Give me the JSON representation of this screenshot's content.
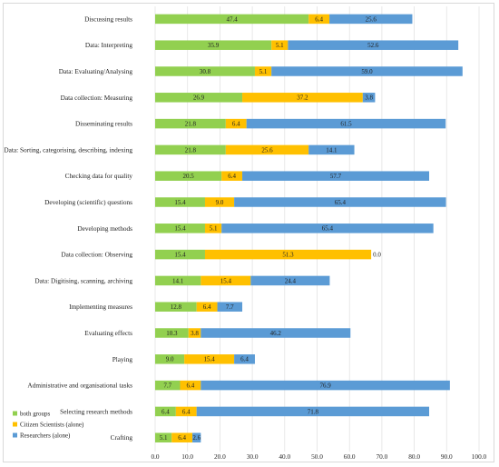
{
  "chart_data": {
    "type": "bar",
    "orientation": "horizontal",
    "stacked": true,
    "title": "",
    "xlabel": "",
    "ylabel": "",
    "xlim": [
      0,
      100
    ],
    "xticks": [
      "0.0",
      "10.0",
      "20.0",
      "30.0",
      "40.0",
      "50.0",
      "60.0",
      "70.0",
      "80.0",
      "90.0",
      "100.0"
    ],
    "grid": true,
    "legend_position": "bottom-left",
    "categories": [
      "Discussing results",
      "Data: Interpreting",
      "Data: Evaluating/Analysing",
      "Data collection: Measuring",
      "Disseminating results",
      "Data: Sorting, categorising, describing, indexing",
      "Checking data for quality",
      "Developing (scientific) questions",
      "Developing methods",
      "Data collection: Observing",
      "Data: Digitising, scanning, archiving",
      "Implementing measures",
      "Evaluating effects",
      "Playing",
      "Administrative and organisational tasks",
      "Selecting research methods",
      "Crafting"
    ],
    "series": [
      {
        "name": "both groups",
        "color": "#92d050",
        "values": [
          47.4,
          35.9,
          30.8,
          26.9,
          21.8,
          21.8,
          20.5,
          15.4,
          15.4,
          15.4,
          14.1,
          12.8,
          10.3,
          9.0,
          7.7,
          6.4,
          5.1
        ]
      },
      {
        "name": "Citizen Scientists (alone)",
        "color": "#ffc000",
        "values": [
          6.4,
          5.1,
          5.1,
          37.2,
          6.4,
          25.6,
          6.4,
          9.0,
          5.1,
          51.3,
          15.4,
          6.4,
          3.8,
          15.4,
          6.4,
          6.4,
          6.4
        ]
      },
      {
        "name": "Researchers (alone)",
        "color": "#5b9bd5",
        "values": [
          25.6,
          52.6,
          59.0,
          3.8,
          61.5,
          14.1,
          57.7,
          65.4,
          65.4,
          0.0,
          24.4,
          7.7,
          46.2,
          6.4,
          76.9,
          71.8,
          2.6
        ]
      }
    ],
    "data_labels": [
      [
        "47.4",
        "6.4",
        "25.6"
      ],
      [
        "35.9",
        "5.1",
        "52.6"
      ],
      [
        "30.8",
        "5.1",
        "59.0"
      ],
      [
        "26.9",
        "37.2",
        "3.8"
      ],
      [
        "21.8",
        "6.4",
        "61.5"
      ],
      [
        "21.8",
        "25.6",
        "14.1"
      ],
      [
        "20.5",
        "6.4",
        "57.7"
      ],
      [
        "15.4",
        "9.0",
        "65.4"
      ],
      [
        "15.4",
        "5.1",
        "65.4"
      ],
      [
        "15.4",
        "51.3",
        "0.0"
      ],
      [
        "14.1",
        "15.4",
        "24.4"
      ],
      [
        "12.8",
        "6.4",
        "7.7"
      ],
      [
        "10.3",
        "3.8",
        "46.2"
      ],
      [
        "9.0",
        "15.4",
        "6.4"
      ],
      [
        "7.7",
        "6.4",
        "76.9"
      ],
      [
        "6.4",
        "6.4",
        "71.8"
      ],
      [
        "5.1",
        "6.4",
        "2.6"
      ]
    ]
  }
}
